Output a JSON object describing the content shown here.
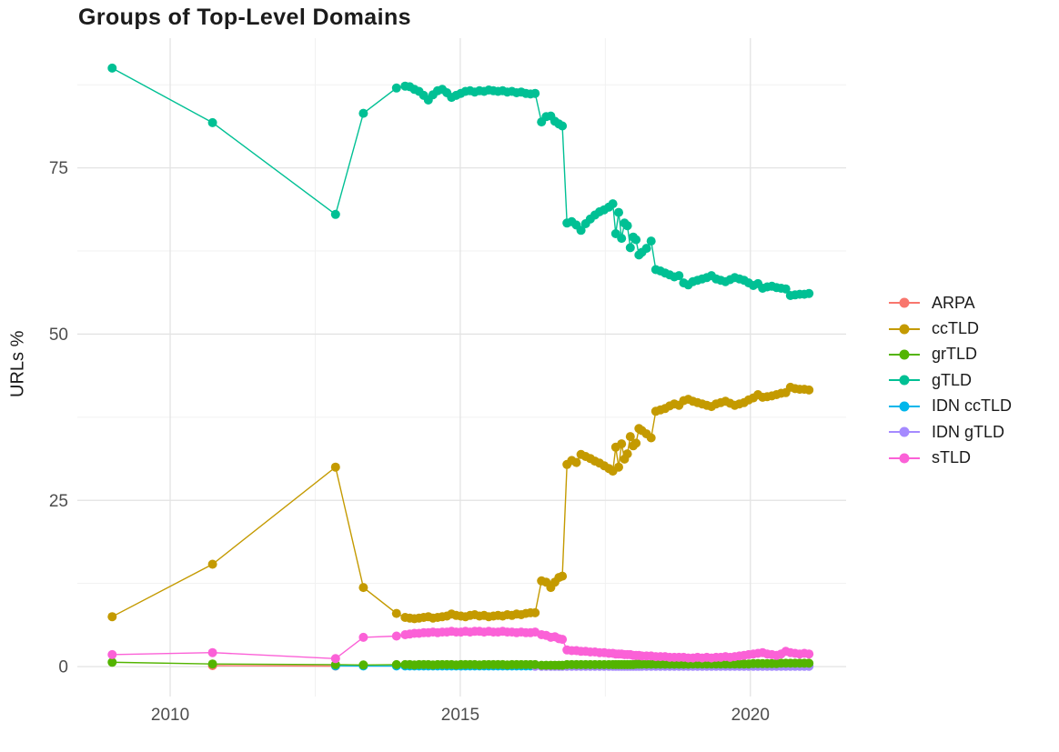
{
  "chart_data": {
    "type": "line",
    "title": "Groups of Top-Level Domains",
    "xlabel": "",
    "ylabel": "URLs %",
    "grid": true,
    "legend_position": "right",
    "x_axis": {
      "ticks": [
        2010,
        2015,
        2020
      ],
      "minor_ticks": [
        2012.5,
        2017.5
      ],
      "range": [
        2008.4,
        2021.65
      ]
    },
    "y_axis": {
      "ticks": [
        0,
        25,
        50,
        75
      ],
      "minor_ticks": [
        12.5,
        37.5,
        62.5,
        87.5
      ],
      "range": [
        -4.5,
        94.5
      ]
    },
    "x": [
      2009.0,
      2010.73,
      2012.85,
      2013.33,
      2013.9,
      2014.05,
      2014.13,
      2014.21,
      2014.29,
      2014.37,
      2014.45,
      2014.53,
      2014.61,
      2014.69,
      2014.77,
      2014.85,
      2014.93,
      2015.01,
      2015.09,
      2015.17,
      2015.25,
      2015.33,
      2015.41,
      2015.49,
      2015.57,
      2015.65,
      2015.73,
      2015.81,
      2015.89,
      2015.97,
      2016.05,
      2016.13,
      2016.21,
      2016.29,
      2016.4,
      2016.48,
      2016.56,
      2016.63,
      2016.7,
      2016.76,
      2016.84,
      2016.92,
      2017.0,
      2017.08,
      2017.16,
      2017.24,
      2017.32,
      2017.4,
      2017.48,
      2017.56,
      2017.63,
      2017.68,
      2017.73,
      2017.78,
      2017.83,
      2017.88,
      2017.93,
      2017.98,
      2018.03,
      2018.08,
      2018.13,
      2018.21,
      2018.29,
      2018.37,
      2018.45,
      2018.53,
      2018.61,
      2018.69,
      2018.77,
      2018.85,
      2018.93,
      2019.01,
      2019.09,
      2019.17,
      2019.25,
      2019.33,
      2019.41,
      2019.49,
      2019.57,
      2019.65,
      2019.73,
      2019.81,
      2019.89,
      2019.97,
      2020.05,
      2020.13,
      2020.21,
      2020.29,
      2020.37,
      2020.45,
      2020.53,
      2020.61,
      2020.69,
      2020.77,
      2020.85,
      2020.93,
      2021.01
    ],
    "series": [
      {
        "name": "ARPA",
        "color": "#F8766D",
        "x": [
          2010.73,
          2012.85
        ],
        "values": [
          0.15,
          0.08
        ]
      },
      {
        "name": "ccTLD",
        "color": "#C49A00",
        "values": [
          7.5,
          15.4,
          30,
          11.9,
          8,
          7.4,
          7.3,
          7.2,
          7.3,
          7.4,
          7.5,
          7.3,
          7.4,
          7.5,
          7.6,
          7.9,
          7.7,
          7.6,
          7.5,
          7.7,
          7.8,
          7.6,
          7.7,
          7.5,
          7.6,
          7.7,
          7.6,
          7.8,
          7.7,
          7.9,
          7.8,
          8,
          8.1,
          8.1,
          12.9,
          12.7,
          11.9,
          12.7,
          13.4,
          13.6,
          30.4,
          31,
          30.7,
          31.9,
          31.6,
          31.3,
          30.9,
          30.6,
          30.2,
          29.8,
          29.4,
          33,
          30,
          33.5,
          31.2,
          32,
          34.6,
          33.2,
          33.6,
          35.8,
          35.5,
          35,
          34.4,
          38.4,
          38.6,
          38.8,
          39.2,
          39.5,
          39.3,
          40,
          40.2,
          39.9,
          39.7,
          39.5,
          39.3,
          39.1,
          39.5,
          39.7,
          39.9,
          39.6,
          39.3,
          39.5,
          39.7,
          40.1,
          40.4,
          40.9,
          40.5,
          40.6,
          40.7,
          40.9,
          41.1,
          41.2,
          42,
          41.8,
          41.7,
          41.7,
          41.6
        ]
      },
      {
        "name": "grTLD",
        "color": "#53B400",
        "values": [
          0.65,
          0.4,
          0.3,
          0.25,
          0.3,
          0.3,
          0.3,
          0.25,
          0.3,
          0.3,
          0.3,
          0.25,
          0.3,
          0.3,
          0.3,
          0.3,
          0.25,
          0.3,
          0.3,
          0.3,
          0.3,
          0.25,
          0.3,
          0.3,
          0.3,
          0.3,
          0.3,
          0.25,
          0.3,
          0.3,
          0.3,
          0.3,
          0.3,
          0.3,
          0.2,
          0.2,
          0.2,
          0.2,
          0.2,
          0.2,
          0.3,
          0.3,
          0.3,
          0.3,
          0.3,
          0.3,
          0.3,
          0.3,
          0.3,
          0.3,
          0.3,
          0.3,
          0.3,
          0.3,
          0.3,
          0.3,
          0.3,
          0.3,
          0.35,
          0.35,
          0.35,
          0.35,
          0.35,
          0.35,
          0.35,
          0.35,
          0.35,
          0.35,
          0.35,
          0.35,
          0.35,
          0.4,
          0.4,
          0.4,
          0.4,
          0.4,
          0.4,
          0.4,
          0.4,
          0.4,
          0.4,
          0.4,
          0.4,
          0.4,
          0.45,
          0.45,
          0.45,
          0.45,
          0.45,
          0.45,
          0.5,
          0.5,
          0.5,
          0.5,
          0.5,
          0.5,
          0.5
        ]
      },
      {
        "name": "gTLD",
        "color": "#00C094",
        "values": [
          90,
          81.8,
          68,
          83.2,
          87,
          87.3,
          87.2,
          86.8,
          86.5,
          85.9,
          85.2,
          86,
          86.6,
          86.8,
          86.3,
          85.6,
          85.9,
          86.2,
          86.5,
          86.6,
          86.4,
          86.6,
          86.5,
          86.7,
          86.6,
          86.5,
          86.6,
          86.4,
          86.5,
          86.3,
          86.4,
          86.2,
          86.1,
          86.2,
          81.9,
          82.7,
          82.8,
          82,
          81.6,
          81.3,
          66.7,
          66.9,
          66.4,
          65.6,
          66.6,
          67.3,
          67.9,
          68.4,
          68.7,
          69.1,
          69.6,
          65.1,
          68.3,
          64.4,
          66.7,
          66.3,
          63,
          64.6,
          64.2,
          61.9,
          62.3,
          62.9,
          64,
          59.7,
          59.5,
          59.2,
          58.9,
          58.6,
          58.8,
          57.7,
          57.4,
          57.9,
          58.1,
          58.3,
          58.5,
          58.8,
          58.3,
          58.1,
          57.9,
          58.2,
          58.5,
          58.3,
          58.1,
          57.7,
          57.3,
          57.6,
          56.9,
          57.1,
          57.2,
          57,
          56.9,
          56.8,
          55.8,
          55.9,
          56,
          56,
          56.1
        ]
      },
      {
        "name": "IDN ccTLD",
        "color": "#00B6EB",
        "x_start_index": 2,
        "values": [
          0.12,
          0.1,
          0.1,
          0.1,
          0.1,
          0.1,
          0.1,
          0.1,
          0.1,
          0.1,
          0.1,
          0.1,
          0.1,
          0.1,
          0.1,
          0.1,
          0.1,
          0.1,
          0.1,
          0.1,
          0.1,
          0.1,
          0.1,
          0.1,
          0.1,
          0.1,
          0.1,
          0.1,
          0.1,
          0.1,
          0.1,
          0.1,
          0.1,
          0.1,
          0.1,
          0.1,
          0.1,
          0.1,
          0.08,
          0.08,
          0.08,
          0.08,
          0.08,
          0.08,
          0.08,
          0.08,
          0.08,
          0.08,
          0.08,
          0.08,
          0.08,
          0.08,
          0.08,
          0.08,
          0.08,
          0.08,
          0.08,
          0.08,
          0.08,
          0.08,
          0.08,
          0.08,
          0.08,
          0.08,
          0.08,
          0.08,
          0.08,
          0.08,
          0.08,
          0.08,
          0.08,
          0.08,
          0.08,
          0.08,
          0.08,
          0.08,
          0.08,
          0.08,
          0.08,
          0.08,
          0.08,
          0.08,
          0.08,
          0.08,
          0.08,
          0.08,
          0.08,
          0.08,
          0.08,
          0.08,
          0.08,
          0.08,
          0.08,
          0.08,
          0.08
        ]
      },
      {
        "name": "IDN gTLD",
        "color": "#A58AFF",
        "x_start_index": 33,
        "values": [
          0.05,
          0.05,
          0.05,
          0.05,
          0.05,
          0.05,
          0.05,
          0.06,
          0.06,
          0.06,
          0.06,
          0.06,
          0.06,
          0.06,
          0.06,
          0.06,
          0.06,
          0.06,
          0.06,
          0.06,
          0.06,
          0.06,
          0.06,
          0.06,
          0.06,
          0.06,
          0.06,
          0.06,
          0.06,
          0.06,
          0.06,
          0.06,
          0.06,
          0.06,
          0.06,
          0.06,
          0.06,
          0.06,
          0.06,
          0.06,
          0.06,
          0.06,
          0.06,
          0.06,
          0.06,
          0.06,
          0.06,
          0.06,
          0.06,
          0.06,
          0.06,
          0.06,
          0.06,
          0.06,
          0.06,
          0.06,
          0.06,
          0.06,
          0.06,
          0.06,
          0.06,
          0.06,
          0.06,
          0.06
        ]
      },
      {
        "name": "sTLD",
        "color": "#FB61D7",
        "values": [
          1.8,
          2.1,
          1.2,
          4.4,
          4.6,
          4.8,
          4.9,
          5,
          5,
          5.1,
          5.1,
          5.2,
          5.1,
          5.2,
          5.2,
          5.3,
          5.2,
          5.2,
          5.3,
          5.2,
          5.3,
          5.3,
          5.2,
          5.3,
          5.2,
          5.2,
          5.3,
          5.2,
          5.2,
          5.1,
          5.2,
          5.1,
          5.1,
          5.2,
          4.8,
          4.7,
          4.4,
          4.5,
          4.2,
          4.1,
          2.5,
          2.4,
          2.4,
          2.3,
          2.3,
          2.2,
          2.2,
          2.1,
          2.1,
          2,
          2,
          1.9,
          1.9,
          1.9,
          1.8,
          1.8,
          1.8,
          1.7,
          1.7,
          1.7,
          1.6,
          1.6,
          1.6,
          1.5,
          1.5,
          1.5,
          1.4,
          1.4,
          1.4,
          1.4,
          1.3,
          1.3,
          1.4,
          1.3,
          1.4,
          1.3,
          1.4,
          1.4,
          1.5,
          1.4,
          1.5,
          1.6,
          1.7,
          1.8,
          1.9,
          2,
          2.1,
          1.9,
          1.8,
          1.7,
          1.9,
          2.3,
          2.1,
          2,
          1.9,
          2,
          1.9
        ]
      }
    ]
  }
}
